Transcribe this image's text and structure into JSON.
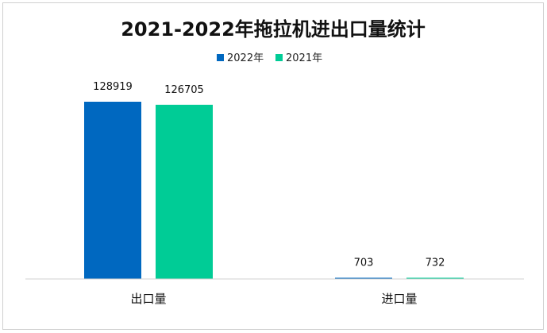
{
  "chart_data": {
    "type": "bar",
    "title": "2021-2022年拖拉机进出口量统计",
    "categories": [
      "出口量",
      "进口量"
    ],
    "series": [
      {
        "name": "2022年",
        "color": "#0068c0",
        "values": [
          128919,
          703
        ]
      },
      {
        "name": "2021年",
        "color": "#00cc96",
        "values": [
          126705,
          732
        ]
      }
    ],
    "ylim": [
      0,
      128919
    ],
    "grid": false,
    "legend": "top-center"
  }
}
